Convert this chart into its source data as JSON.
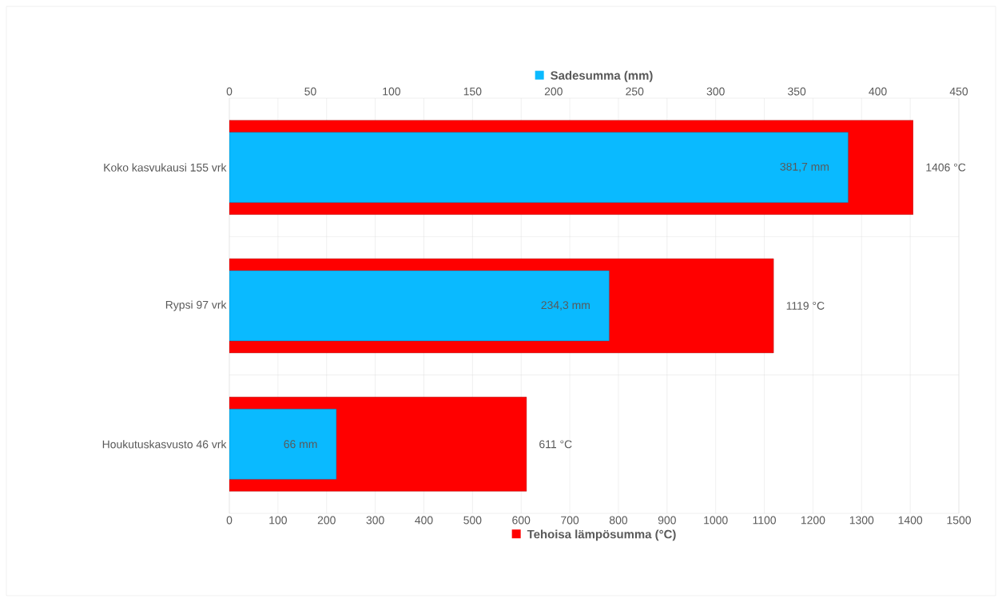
{
  "chart_data": {
    "type": "bar",
    "orientation": "horizontal",
    "categories": [
      "Koko kasvukausi 155 vrk",
      "Rypsi 97 vrk",
      "Houkutuskasvusto 46 vrk"
    ],
    "xlabel": "Tehoisa lämpösumma (°C)",
    "x2label": "Sadesumma (mm)",
    "xlim": [
      0,
      1500
    ],
    "xticks": [
      0,
      100,
      200,
      300,
      400,
      500,
      600,
      700,
      800,
      900,
      1000,
      1100,
      1200,
      1300,
      1400,
      1500
    ],
    "x2lim": [
      0,
      450
    ],
    "x2ticks": [
      0,
      50,
      100,
      150,
      200,
      250,
      300,
      350,
      400,
      450
    ],
    "grid": true,
    "series": [
      {
        "color": "#ff0000",
        "values": [
          1406,
          1119,
          611
        ],
        "value_labels": [
          "1406 °C",
          "1119 °C",
          "611 °C"
        ]
      },
      {
        "color": "#0abaff",
        "axis": "x2",
        "values": [
          381.7,
          234.3,
          66
        ],
        "value_labels": [
          "381,7 mm",
          "234,3 mm",
          "66 mm"
        ]
      }
    ]
  }
}
